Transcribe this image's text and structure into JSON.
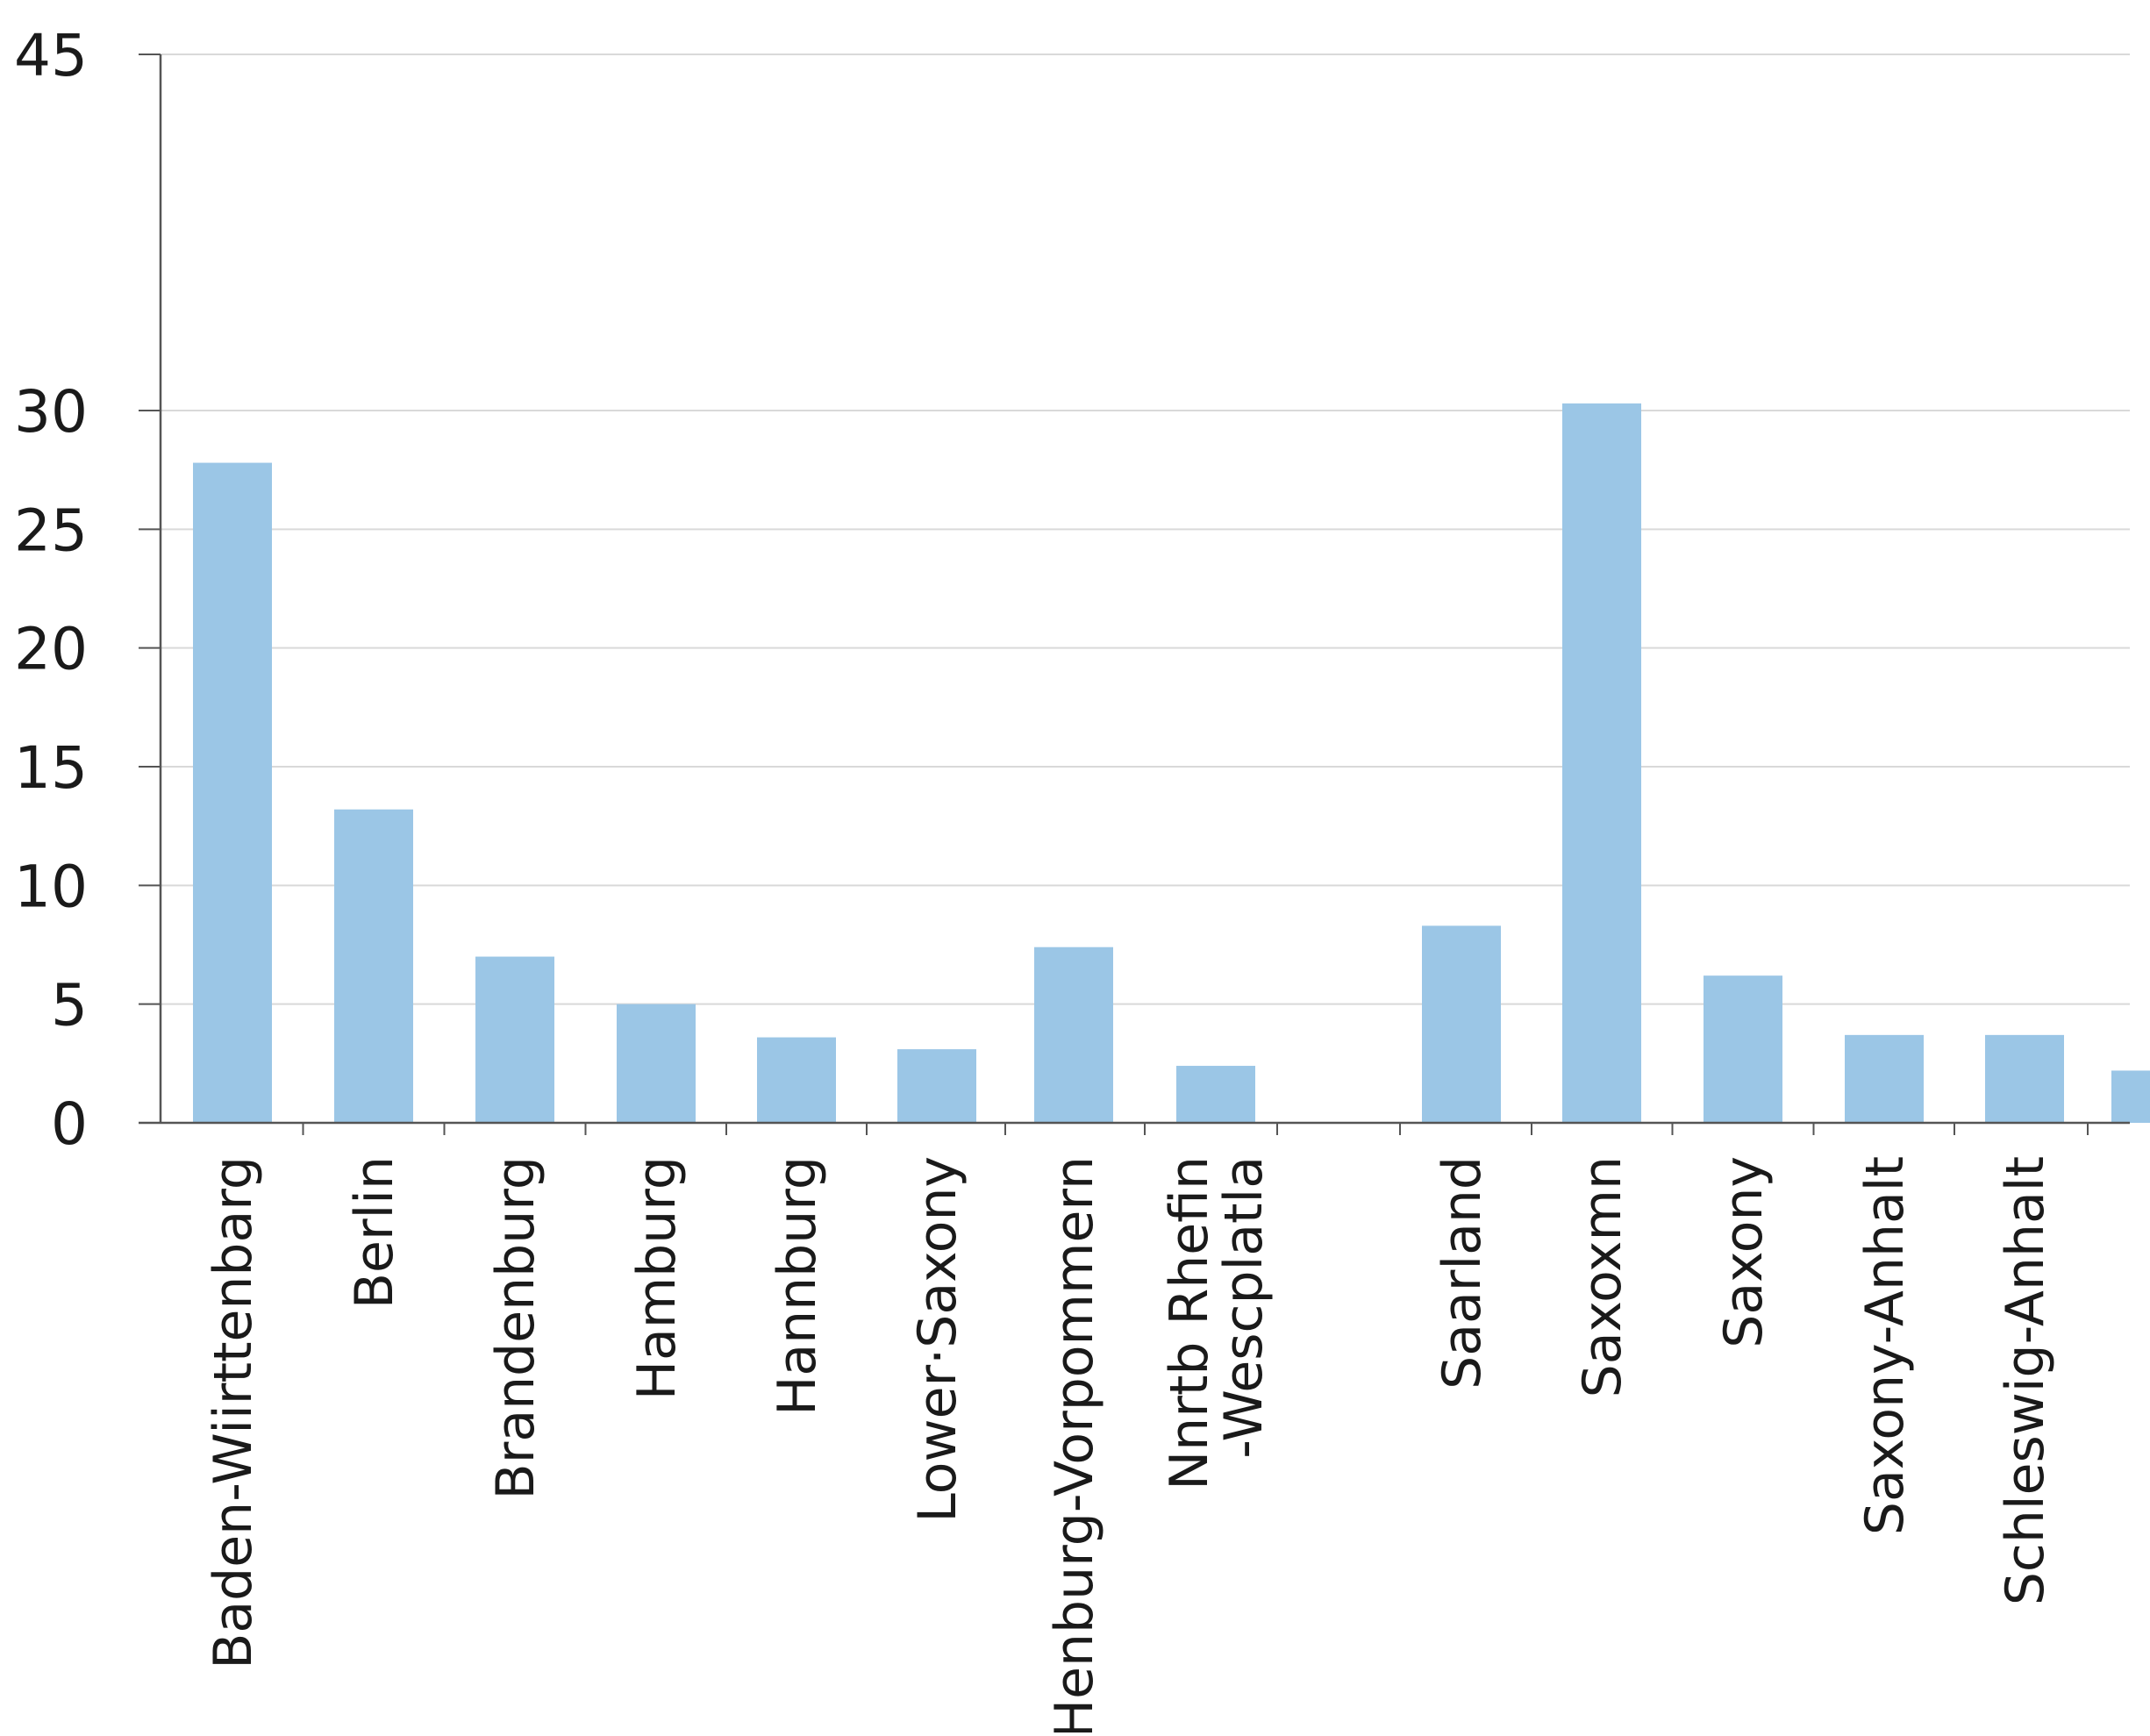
{
  "chart_data": {
    "type": "bar",
    "title": "",
    "xlabel": "",
    "ylabel": "",
    "ylim": [
      0,
      45
    ],
    "yticks": [
      0,
      5,
      10,
      15,
      20,
      25,
      30,
      45
    ],
    "grid": true,
    "bar_color": "#9bc6e6",
    "categories": [
      [
        "Baden-Wiirttenbarg"
      ],
      [
        "Berlin"
      ],
      [
        "Brandenburg"
      ],
      [
        "Hamburg"
      ],
      [
        "Hannburg"
      ],
      [
        "Lower·Saxony"
      ],
      [
        "Henburg-Vorpommern"
      ],
      [
        "Nnrtb Rhefin",
        "-Wescplatla"
      ],
      [
        ""
      ],
      [
        "Saarland"
      ],
      [
        "Saxoxmn"
      ],
      [
        "Saxony"
      ],
      [
        "Saxony-Anhalt"
      ],
      [
        "Schleswig-Anhalt"
      ],
      [
        ""
      ]
    ],
    "values": [
      27.8,
      13.2,
      7.0,
      5.0,
      3.6,
      3.1,
      7.4,
      2.4,
      0,
      8.3,
      30.3,
      6.2,
      3.7,
      3.7,
      2.2
    ]
  }
}
